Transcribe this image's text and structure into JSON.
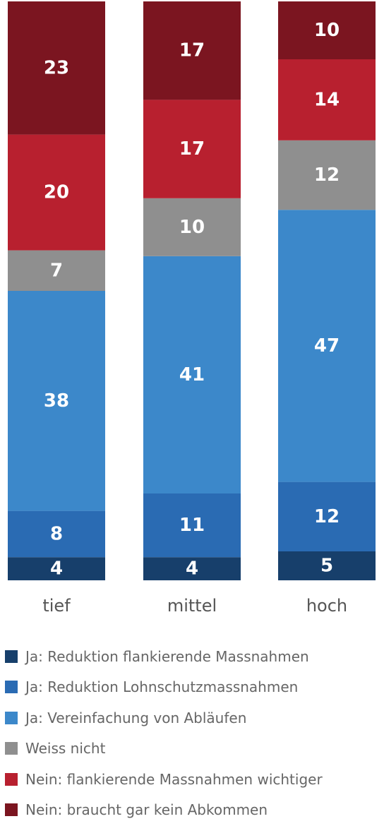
{
  "chart_data": {
    "type": "bar",
    "stacked": true,
    "categories": [
      "tief",
      "mittel",
      "hoch"
    ],
    "series": [
      {
        "name": "Ja: Reduktion flankierende Massnahmen",
        "color": "#173f6b",
        "values": [
          4,
          4,
          5
        ]
      },
      {
        "name": "Ja: Reduktion Lohnschutzmassnahmen",
        "color": "#2a6bb3",
        "values": [
          8,
          11,
          12
        ]
      },
      {
        "name": "Ja: Vereinfachung von Abläufen",
        "color": "#3c88ca",
        "values": [
          38,
          41,
          47
        ]
      },
      {
        "name": "Weiss nicht",
        "color": "#8f8f8f",
        "values": [
          7,
          10,
          12
        ]
      },
      {
        "name": "Nein: flankierende Massnahmen wichtiger",
        "color": "#b8202f",
        "values": [
          20,
          17,
          14
        ]
      },
      {
        "name": "Nein: braucht gar kein Abkommen",
        "color": "#7b1520",
        "values": [
          23,
          17,
          10
        ]
      }
    ],
    "legend_position": "bottom",
    "grid": false
  }
}
